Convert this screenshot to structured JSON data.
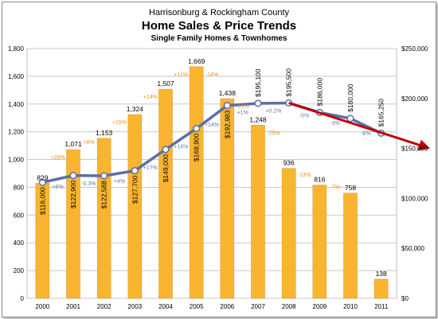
{
  "chart_data": {
    "type": "bar+line",
    "title_line1": "Harrisonburg & Rockingham County",
    "title": "Home Sales & Price Trends",
    "subtitle": "Single Family Homes & Townhomes",
    "categories": [
      "2000",
      "2001",
      "2002",
      "2003",
      "2004",
      "2005",
      "2006",
      "2007",
      "2008",
      "2009",
      "2010",
      "2011"
    ],
    "sales": {
      "values": [
        829,
        1071,
        1153,
        1324,
        1507,
        1669,
        1438,
        1248,
        936,
        816,
        758,
        138
      ],
      "labels": [
        "829",
        "1,071",
        "1,153",
        "1,324",
        "1,507",
        "1,669",
        "1,438",
        "1,248",
        "936",
        "816",
        "758",
        "138"
      ],
      "changes": [
        "",
        "+29%",
        "+8%",
        "+15%",
        "+14%",
        "+11%",
        "-14%",
        "-13%",
        "-25%",
        "-13%",
        "-7%",
        ""
      ],
      "color": "#f9b52f"
    },
    "median_price": {
      "values": [
        116000,
        122900,
        122588,
        127700,
        149000,
        169900,
        192983,
        195100,
        195500,
        186000,
        180000,
        165250
      ],
      "labels": [
        "$116,000",
        "$122,900",
        "$122,588",
        "$127,700",
        "$149,000",
        "$169,900",
        "$192,983",
        "$195,100",
        "$195,500",
        "$186,000",
        "$180,000",
        "$165,250"
      ],
      "changes": [
        "",
        "+6%",
        "-0.3%",
        "+4%",
        "+17%",
        "+14%",
        "+14%",
        "+1%",
        "+0.2%",
        "-5%",
        "-3%",
        "-8%"
      ],
      "color": "#5b6fa8"
    },
    "left_axis": {
      "ylim": [
        0,
        1800
      ],
      "ticks": [
        "0",
        "200",
        "400",
        "600",
        "800",
        "1,000",
        "1,200",
        "1,400",
        "1,600",
        "1,800"
      ]
    },
    "right_axis": {
      "ylim": [
        0,
        250000
      ],
      "ticks": [
        "$0",
        "$50,000",
        "$100,000",
        "$150,000",
        "$200,000",
        "$250,000"
      ]
    },
    "trend_arrow": {
      "from_year": "2008",
      "to_price": 150000,
      "color": "#c00000"
    },
    "grid": true
  }
}
